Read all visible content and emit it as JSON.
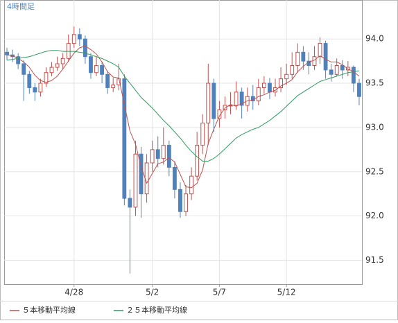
{
  "chart_data": {
    "type": "candlestick",
    "title": "4時間足",
    "categories": [
      null,
      null,
      null,
      null,
      null,
      null,
      null,
      null,
      null,
      null,
      null,
      null,
      "4/28",
      null,
      null,
      null,
      null,
      null,
      null,
      null,
      null,
      null,
      null,
      null,
      null,
      null,
      "5/2",
      null,
      null,
      null,
      null,
      null,
      null,
      null,
      null,
      null,
      null,
      null,
      "5/7",
      null,
      null,
      null,
      null,
      null,
      null,
      null,
      null,
      null,
      null,
      null,
      "5/12",
      null,
      null,
      null,
      null,
      null,
      null,
      null,
      null,
      null,
      null,
      null,
      null,
      null
    ],
    "open": [
      93.85,
      93.82,
      93.8,
      93.72,
      93.6,
      93.45,
      93.4,
      93.5,
      93.62,
      93.68,
      93.72,
      93.78,
      93.95,
      94.05,
      94.0,
      93.8,
      93.62,
      93.7,
      93.6,
      93.45,
      93.48,
      93.55,
      92.2,
      92.1,
      92.7,
      92.25,
      92.6,
      92.75,
      92.65,
      92.8,
      92.55,
      92.3,
      92.05,
      92.25,
      92.45,
      92.8,
      93.05,
      93.5,
      93.1,
      93.2,
      93.25,
      93.25,
      93.4,
      93.25,
      93.35,
      93.3,
      93.45,
      93.5,
      93.4,
      93.45,
      93.55,
      93.6,
      93.7,
      93.85,
      93.75,
      93.7,
      93.8,
      93.95,
      93.65,
      93.6,
      93.7,
      93.65,
      93.68,
      93.5
    ],
    "high": [
      93.9,
      93.88,
      93.84,
      93.76,
      93.64,
      93.5,
      93.55,
      93.68,
      93.74,
      93.8,
      93.84,
      94.05,
      94.14,
      94.12,
      94.04,
      93.84,
      93.8,
      93.74,
      93.64,
      93.56,
      93.72,
      93.6,
      92.3,
      92.85,
      92.78,
      92.7,
      92.85,
      92.9,
      93.0,
      92.85,
      92.62,
      92.38,
      92.35,
      92.55,
      92.95,
      93.15,
      93.72,
      93.55,
      93.3,
      93.35,
      93.4,
      93.52,
      93.45,
      93.45,
      93.48,
      93.55,
      93.58,
      93.56,
      93.55,
      93.68,
      93.72,
      93.85,
      93.95,
      93.92,
      93.85,
      93.92,
      94.02,
      93.98,
      93.72,
      93.78,
      93.76,
      93.75,
      93.7,
      93.55
    ],
    "low": [
      93.76,
      93.74,
      93.66,
      93.3,
      93.38,
      93.3,
      93.35,
      93.46,
      93.58,
      93.64,
      93.66,
      93.74,
      93.9,
      93.92,
      93.72,
      93.55,
      93.58,
      93.5,
      93.38,
      93.4,
      93.42,
      92.12,
      91.35,
      92.0,
      91.98,
      92.15,
      92.5,
      92.55,
      92.58,
      92.45,
      92.2,
      91.98,
      92.0,
      92.18,
      92.4,
      92.7,
      92.8,
      92.95,
      93.0,
      93.1,
      93.15,
      93.2,
      93.1,
      93.18,
      93.2,
      93.25,
      93.38,
      93.32,
      93.35,
      93.4,
      93.48,
      93.55,
      93.62,
      93.65,
      93.6,
      93.65,
      93.72,
      93.55,
      93.52,
      93.58,
      93.55,
      93.58,
      93.4,
      93.25
    ],
    "close": [
      93.82,
      93.8,
      93.72,
      93.6,
      93.45,
      93.4,
      93.5,
      93.62,
      93.68,
      93.72,
      93.78,
      93.95,
      94.05,
      94.0,
      93.8,
      93.62,
      93.7,
      93.6,
      93.45,
      93.48,
      93.55,
      92.2,
      92.1,
      92.7,
      92.25,
      92.6,
      92.75,
      92.65,
      92.8,
      92.55,
      92.3,
      92.05,
      92.25,
      92.45,
      92.8,
      93.05,
      93.5,
      93.1,
      93.2,
      93.25,
      93.25,
      93.4,
      93.25,
      93.35,
      93.3,
      93.45,
      93.5,
      93.4,
      93.45,
      93.55,
      93.6,
      93.7,
      93.85,
      93.75,
      93.7,
      93.8,
      93.95,
      93.65,
      93.6,
      93.7,
      93.65,
      93.68,
      93.5,
      93.35
    ],
    "up_color": "#c0504d",
    "down_color": "#4f81bd",
    "series": [
      {
        "name": "５本移動平均線",
        "color": "#c0504d",
        "values": [
          93.82,
          93.81,
          93.78,
          93.74,
          93.68,
          93.59,
          93.53,
          93.51,
          93.53,
          93.58,
          93.66,
          93.75,
          93.84,
          93.9,
          93.92,
          93.88,
          93.83,
          93.74,
          93.63,
          93.57,
          93.56,
          93.26,
          92.96,
          92.81,
          92.56,
          92.37,
          92.48,
          92.59,
          92.61,
          92.66,
          92.61,
          92.47,
          92.33,
          92.32,
          92.37,
          92.52,
          92.82,
          92.98,
          93.13,
          93.22,
          93.26,
          93.24,
          93.27,
          93.3,
          93.31,
          93.35,
          93.37,
          93.4,
          93.42,
          93.47,
          93.5,
          93.54,
          93.63,
          93.69,
          93.74,
          93.76,
          93.81,
          93.77,
          93.74,
          93.74,
          93.71,
          93.66,
          93.63,
          93.58
        ]
      },
      {
        "name": "２５本移動平均線",
        "color": "#2e9a5e",
        "values": [
          93.76,
          93.77,
          93.78,
          93.79,
          93.8,
          93.82,
          93.84,
          93.86,
          93.87,
          93.87,
          93.86,
          93.86,
          93.86,
          93.85,
          93.84,
          93.82,
          93.8,
          93.78,
          93.75,
          93.72,
          93.68,
          93.58,
          93.5,
          93.42,
          93.34,
          93.28,
          93.22,
          93.15,
          93.08,
          93.02,
          92.95,
          92.88,
          92.8,
          92.73,
          92.67,
          92.62,
          92.62,
          92.65,
          92.7,
          92.76,
          92.82,
          92.88,
          92.92,
          92.95,
          92.98,
          93.0,
          93.04,
          93.08,
          93.13,
          93.18,
          93.24,
          93.3,
          93.36,
          93.4,
          93.44,
          93.48,
          93.52,
          93.54,
          93.56,
          93.58,
          93.6,
          93.62,
          93.63,
          93.64
        ]
      }
    ],
    "ylim": [
      91.23,
      94.44
    ],
    "yticks": [
      91.5,
      {
        "value": 92,
        "label": "92.0"
      },
      92.5,
      {
        "value": 93,
        "label": "93.0"
      },
      93.5,
      {
        "value": 94,
        "label": "94.0"
      }
    ],
    "grid": true
  }
}
